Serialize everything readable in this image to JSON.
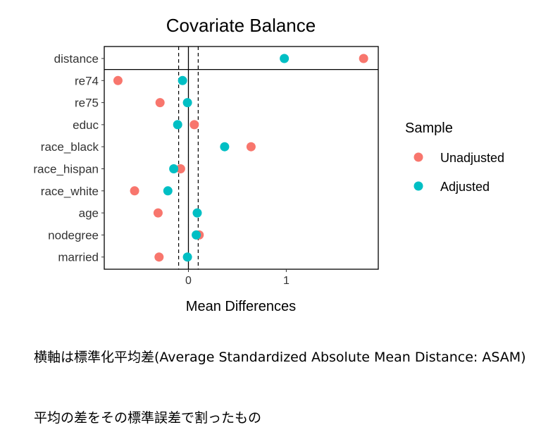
{
  "chart_data": {
    "type": "scatter",
    "title": "Covariate Balance",
    "xlabel": "Mean Differences",
    "ylabel": "",
    "xlim": [
      -0.86,
      1.94
    ],
    "x_ticks": [
      0,
      1
    ],
    "threshold_lines": [
      -0.1,
      0.1
    ],
    "categories": [
      "distance",
      "re74",
      "re75",
      "educ",
      "race_black",
      "race_hispan",
      "race_white",
      "age",
      "nodegree",
      "married"
    ],
    "series": [
      {
        "name": "Unadjusted",
        "color": "#F8766D",
        "values": [
          1.79,
          -0.72,
          -0.29,
          0.06,
          0.64,
          -0.08,
          -0.55,
          -0.31,
          0.11,
          -0.3
        ]
      },
      {
        "name": "Adjusted",
        "color": "#00BFC4",
        "values": [
          0.98,
          -0.06,
          -0.01,
          -0.11,
          0.37,
          -0.15,
          -0.21,
          0.09,
          0.08,
          -0.01
        ]
      }
    ],
    "legend": {
      "title": "Sample",
      "position": "right"
    },
    "grid": false
  },
  "captions": [
    "横軸は標準化平均差(Average Standardized Absolute Mean Distance: ASAM)",
    "平均の差をその標準誤差で割ったもの"
  ]
}
